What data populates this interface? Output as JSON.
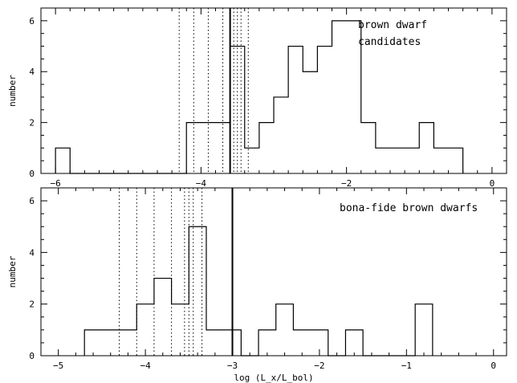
{
  "chart_data": [
    {
      "type": "histogram",
      "panel_label_lines": [
        "brown dwarf",
        "candidates"
      ],
      "xlabel": "",
      "ylabel": "number",
      "xlim": [
        -6.2,
        0.2
      ],
      "ylim": [
        0,
        6.5
      ],
      "x_ticks": [
        -6,
        -4,
        -2,
        0
      ],
      "x_tick_labels": [
        "−6",
        "−4",
        "−2",
        "0"
      ],
      "y_ticks": [
        0,
        2,
        4,
        6
      ],
      "y_tick_labels": [
        "0",
        "2",
        "4",
        "6"
      ],
      "bin_edges": [
        -6.0,
        -5.8,
        -5.6,
        -5.4,
        -5.2,
        -5.0,
        -4.8,
        -4.6,
        -4.4,
        -4.2,
        -4.0,
        -3.8,
        -3.6,
        -3.4,
        -3.2,
        -3.0,
        -2.8,
        -2.6,
        -2.4,
        -2.2,
        -2.0,
        -1.8,
        -1.6,
        -1.4,
        -1.2,
        -1.0,
        -0.8,
        -0.6,
        -0.4
      ],
      "counts": [
        1,
        0,
        0,
        0,
        0,
        0,
        0,
        0,
        0,
        2,
        2,
        2,
        5,
        1,
        2,
        3,
        5,
        4,
        5,
        6,
        6,
        2,
        1,
        1,
        1,
        2,
        1,
        1
      ],
      "dotted_lines_x": [
        -4.3,
        -4.1,
        -3.9,
        -3.7,
        -3.55,
        -3.5,
        -3.45,
        -3.35
      ],
      "solid_line_x": -3.6
    },
    {
      "type": "histogram",
      "panel_label_lines": [
        "bona-fide brown dwarfs"
      ],
      "xlabel": "log (L_x/L_bol)",
      "ylabel": "number",
      "xlim": [
        -5.2,
        0.15
      ],
      "ylim": [
        0,
        6.5
      ],
      "x_ticks": [
        -5,
        -4,
        -3,
        -2,
        -1,
        0
      ],
      "x_tick_labels": [
        "−5",
        "−4",
        "−3",
        "−2",
        "−1",
        "0"
      ],
      "y_ticks": [
        0,
        2,
        4,
        6
      ],
      "y_tick_labels": [
        "0",
        "2",
        "4",
        "6"
      ],
      "bin_edges": [
        -4.7,
        -4.5,
        -4.3,
        -4.1,
        -3.9,
        -3.7,
        -3.5,
        -3.3,
        -3.1,
        -2.9,
        -2.7,
        -2.5,
        -2.3,
        -2.1,
        -1.9,
        -1.7,
        -1.5,
        -1.3,
        -1.1,
        -0.9,
        -0.7
      ],
      "counts": [
        1,
        1,
        1,
        2,
        3,
        2,
        5,
        1,
        1,
        0,
        1,
        2,
        1,
        1,
        0,
        1,
        0,
        0,
        0,
        2
      ],
      "dotted_lines_x": [
        -4.3,
        -4.1,
        -3.9,
        -3.7,
        -3.55,
        -3.5,
        -3.45,
        -3.35
      ],
      "solid_line_x": -3.0
    }
  ]
}
